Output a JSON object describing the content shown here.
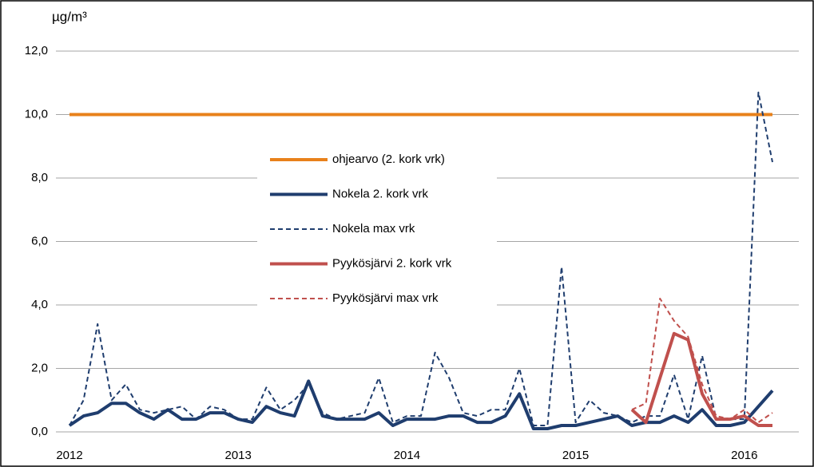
{
  "chart_data": {
    "type": "line",
    "y_label": "µg/m³",
    "categories": [
      "2012",
      null,
      null,
      null,
      null,
      null,
      null,
      null,
      null,
      null,
      null,
      null,
      "2013",
      null,
      null,
      null,
      null,
      null,
      null,
      null,
      null,
      null,
      null,
      null,
      "2014",
      null,
      null,
      null,
      null,
      null,
      null,
      null,
      null,
      null,
      null,
      null,
      "2015",
      null,
      null,
      null,
      null,
      null,
      null,
      null,
      null,
      null,
      null,
      null,
      "2016",
      null,
      null
    ],
    "series": [
      {
        "name": "ohjearvo (2. kork vrk)",
        "color": "#e8811b",
        "style": "solid",
        "values": [
          10,
          10,
          10,
          10,
          10,
          10,
          10,
          10,
          10,
          10,
          10,
          10,
          10,
          10,
          10,
          10,
          10,
          10,
          10,
          10,
          10,
          10,
          10,
          10,
          10,
          10,
          10,
          10,
          10,
          10,
          10,
          10,
          10,
          10,
          10,
          10,
          10,
          10,
          10,
          10,
          10,
          10,
          10,
          10,
          10,
          10,
          10,
          10,
          10,
          10,
          10
        ]
      },
      {
        "name": "Nokela 2. kork vrk",
        "color": "#1f3d6e",
        "style": "solid",
        "values": [
          0.2,
          0.5,
          0.6,
          0.9,
          0.9,
          0.6,
          0.4,
          0.7,
          0.4,
          0.4,
          0.6,
          0.6,
          0.4,
          0.3,
          0.8,
          0.6,
          0.5,
          1.6,
          0.5,
          0.4,
          0.4,
          0.4,
          0.6,
          0.2,
          0.4,
          0.4,
          0.4,
          0.5,
          0.5,
          0.3,
          0.3,
          0.5,
          1.2,
          0.1,
          0.1,
          0.2,
          0.2,
          0.3,
          0.4,
          0.5,
          0.2,
          0.3,
          0.3,
          0.5,
          0.3,
          0.7,
          0.2,
          0.2,
          0.3,
          0.8,
          1.3
        ]
      },
      {
        "name": "Nokela max vrk",
        "color": "#1f3d6e",
        "style": "dashed",
        "values": [
          0.2,
          1.0,
          3.4,
          1.0,
          1.5,
          0.7,
          0.6,
          0.7,
          0.8,
          0.4,
          0.8,
          0.7,
          0.4,
          0.4,
          1.4,
          0.7,
          1.0,
          1.5,
          0.6,
          0.4,
          0.5,
          0.6,
          1.7,
          0.3,
          0.5,
          0.5,
          2.5,
          1.7,
          0.6,
          0.5,
          0.7,
          0.7,
          2.0,
          0.2,
          0.2,
          5.2,
          0.3,
          1.0,
          0.6,
          0.5,
          0.3,
          0.5,
          0.5,
          1.8,
          0.4,
          2.4,
          0.4,
          0.4,
          0.4,
          10.7,
          8.5
        ]
      },
      {
        "name": "Pyykösjärvi 2. kork vrk",
        "color": "#c0504d",
        "style": "solid",
        "values": [
          null,
          null,
          null,
          null,
          null,
          null,
          null,
          null,
          null,
          null,
          null,
          null,
          null,
          null,
          null,
          null,
          null,
          null,
          null,
          null,
          null,
          null,
          null,
          null,
          null,
          null,
          null,
          null,
          null,
          null,
          null,
          null,
          null,
          null,
          null,
          null,
          null,
          null,
          null,
          null,
          0.7,
          0.3,
          1.7,
          3.1,
          2.9,
          1.2,
          0.4,
          0.4,
          0.5,
          0.2,
          0.2
        ]
      },
      {
        "name": "Pyykösjärvi max vrk",
        "color": "#c0504d",
        "style": "dashed",
        "values": [
          null,
          null,
          null,
          null,
          null,
          null,
          null,
          null,
          null,
          null,
          null,
          null,
          null,
          null,
          null,
          null,
          null,
          null,
          null,
          null,
          null,
          null,
          null,
          null,
          null,
          null,
          null,
          null,
          null,
          null,
          null,
          null,
          null,
          null,
          null,
          null,
          null,
          null,
          null,
          null,
          0.7,
          0.9,
          4.2,
          3.5,
          3.0,
          1.5,
          0.5,
          0.4,
          0.7,
          0.3,
          0.6
        ]
      }
    ],
    "ylim": [
      0,
      12
    ],
    "yticks": [
      {
        "value": 0,
        "label": "0,0"
      },
      {
        "value": 2,
        "label": "2,0"
      },
      {
        "value": 4,
        "label": "4,0"
      },
      {
        "value": 6,
        "label": "6,0"
      },
      {
        "value": 8,
        "label": "8,0"
      },
      {
        "value": 10,
        "label": "10,0"
      },
      {
        "value": 12,
        "label": "12,0"
      }
    ],
    "grid": true
  }
}
